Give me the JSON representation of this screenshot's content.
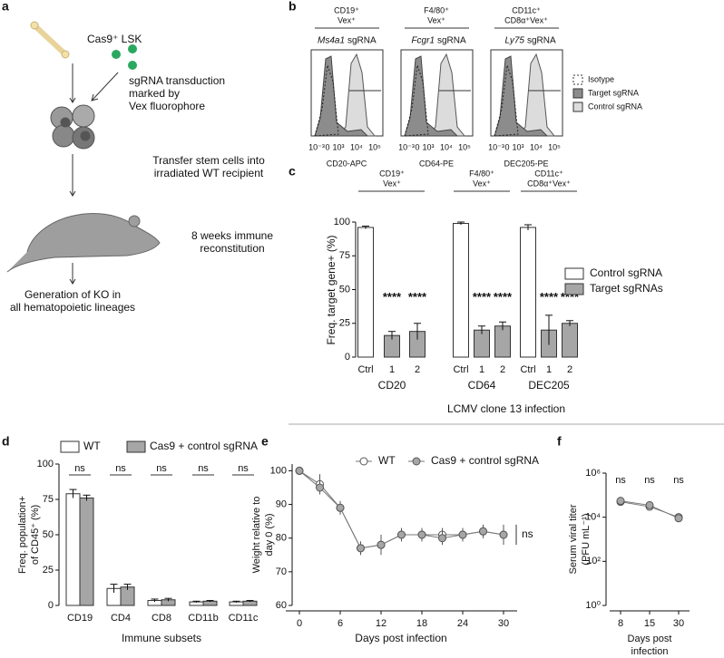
{
  "panel_labels": [
    "a",
    "b",
    "c",
    "d",
    "e",
    "f"
  ],
  "panel_a": {
    "steps": [
      "Cas9⁺ LSK",
      "sgRNA transduction",
      "marked by",
      "Vex fluorophore",
      "Transfer stem cells into",
      "irradiated WT recipient",
      "8 weeks immune",
      "reconstitution",
      "Generation of KO in",
      "all hematopoietic lineages"
    ]
  },
  "panel_b": {
    "plots": [
      {
        "header": [
          "CD19⁺",
          "Vex⁺"
        ],
        "gene": "Ms4a1",
        "suffix": "sgRNA",
        "xlabel": "CD20-APC"
      },
      {
        "header": [
          "F4/80⁺",
          "Vex⁺"
        ],
        "gene": "Fcgr1",
        "suffix": "sgRNA",
        "xlabel": "CD64-PE"
      },
      {
        "header": [
          "CD11c⁺",
          "CD8α⁺Vex⁺"
        ],
        "gene": "Ly75",
        "suffix": "sgRNA",
        "xlabel": "DEC205-PE"
      }
    ],
    "xticks": [
      "10⁻³",
      "0",
      "10³",
      "10⁴",
      "10⁵"
    ],
    "legend": [
      "Isotype",
      "Target sgRNA",
      "Control sgRNA"
    ]
  },
  "section_title": "LCMV clone 13 infection",
  "chart_data": [
    {
      "type": "bar",
      "ylabel": "Freq. target gene+ (%)",
      "groups": [
        "CD20",
        "CD64",
        "DEC205"
      ],
      "group_headers": [
        [
          "CD19⁺",
          "Vex⁺"
        ],
        [
          "F4/80⁺",
          "Vex⁺"
        ],
        [
          "CD11c⁺",
          "CD8α⁺Vex⁺"
        ]
      ],
      "categories": [
        "Ctrl",
        "1",
        "2",
        "Ctrl",
        "1",
        "2",
        "Ctrl",
        "1",
        "2"
      ],
      "series": [
        {
          "name": "Control sgRNA",
          "color": "#ffffff",
          "values": [
            96,
            null,
            null,
            99,
            null,
            null,
            96,
            null,
            null
          ],
          "errors": [
            1,
            null,
            null,
            1,
            null,
            null,
            2,
            null,
            null
          ]
        },
        {
          "name": "Target sgRNAs",
          "color": "#a6a6a6",
          "values": [
            null,
            16,
            19,
            null,
            20,
            23,
            null,
            20,
            25
          ],
          "errors": [
            null,
            3,
            6,
            null,
            3,
            3,
            null,
            11,
            2
          ]
        }
      ],
      "annotations": [
        "****",
        "****",
        "****",
        "****",
        "****",
        "****"
      ],
      "ylim": [
        0,
        100
      ],
      "yticks": [
        0,
        25,
        50,
        75,
        100
      ]
    },
    {
      "type": "bar",
      "ylabel": [
        "Freq. population+",
        "of CD45⁺ (%)"
      ],
      "xlabel": "Immune subsets",
      "categories": [
        "CD19",
        "CD4",
        "CD8",
        "CD11b",
        "CD11c"
      ],
      "series": [
        {
          "name": "WT",
          "color": "#ffffff",
          "values": [
            79,
            12,
            3.5,
            2.5,
            2.5
          ],
          "errors": [
            3,
            3,
            1,
            0.5,
            0.5
          ]
        },
        {
          "name": "Cas9 + control sgRNA",
          "color": "#a6a6a6",
          "values": [
            76,
            13,
            4,
            3,
            3
          ],
          "errors": [
            2,
            2,
            1,
            0.5,
            0.5
          ]
        }
      ],
      "annotations": [
        "ns",
        "ns",
        "ns",
        "ns",
        "ns"
      ],
      "ylim": [
        0,
        100
      ],
      "yticks": [
        0,
        25,
        50,
        75,
        100
      ]
    },
    {
      "type": "line",
      "ylabel": [
        "Weight relative to",
        "day 0 (%)"
      ],
      "xlabel": "Days post infection",
      "x": [
        0,
        3,
        6,
        9,
        12,
        15,
        18,
        21,
        24,
        27,
        30
      ],
      "series": [
        {
          "name": "WT",
          "color": "#ffffff",
          "values": [
            100,
            96,
            89,
            77,
            78,
            81,
            81,
            81,
            81,
            82,
            81
          ],
          "errors": [
            0.5,
            3,
            2,
            2,
            3,
            2,
            2,
            2,
            2,
            2,
            3
          ]
        },
        {
          "name": "Cas9 + control sgRNA",
          "color": "#a6a6a6",
          "values": [
            100,
            95,
            89,
            77,
            78,
            81,
            81,
            80,
            81,
            82,
            81
          ],
          "errors": [
            0.5,
            2,
            2,
            2,
            2,
            2,
            2,
            2,
            2,
            2,
            2
          ]
        }
      ],
      "annotations": [
        "ns"
      ],
      "xlim": [
        -2,
        32
      ],
      "xticks": [
        0,
        6,
        12,
        18,
        24,
        30
      ],
      "ylim": [
        60,
        102
      ],
      "yticks": [
        60,
        70,
        80,
        90,
        100
      ]
    },
    {
      "type": "line",
      "ylabel": [
        "Serum viral titer",
        "(PFU mL⁻¹)"
      ],
      "xlabel": [
        "Days post",
        "infection"
      ],
      "categories": [
        "8",
        "15",
        "30"
      ],
      "log": true,
      "series": [
        {
          "color": "#ffffff",
          "values": [
            50000,
            30000,
            10000
          ]
        },
        {
          "color": "#a6a6a6",
          "values": [
            55000,
            35000,
            9000
          ]
        }
      ],
      "annotations": [
        "ns",
        "ns",
        "ns"
      ],
      "ylim": [
        1,
        1000000
      ],
      "yticks": [
        {
          "value": 1,
          "label": "10⁰"
        },
        {
          "value": 100,
          "label": "10²"
        },
        {
          "value": 10000,
          "label": "10⁴"
        },
        {
          "value": 1000000,
          "label": "10⁶"
        }
      ]
    }
  ]
}
